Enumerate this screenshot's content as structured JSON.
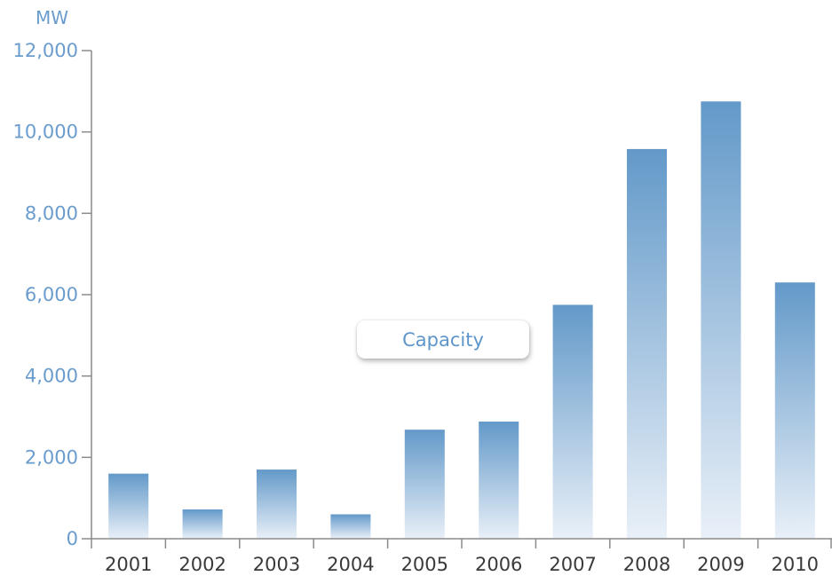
{
  "chart_data": {
    "type": "bar",
    "unit_label": "MW",
    "categories": [
      "2001",
      "2002",
      "2003",
      "2004",
      "2005",
      "2006",
      "2007",
      "2008",
      "2009",
      "2010"
    ],
    "series": [
      {
        "name": "Capacity",
        "values": [
          1600,
          720,
          1700,
          600,
          2680,
          2880,
          5750,
          9580,
          10750,
          6300
        ]
      }
    ],
    "ylim": [
      0,
      12000
    ],
    "yticks": [
      "0",
      "2,000",
      "4,000",
      "6,000",
      "8,000",
      "10,000",
      "12,000"
    ],
    "ytick_values": [
      0,
      2000,
      4000,
      6000,
      8000,
      10000,
      12000
    ],
    "legend_position": "center",
    "grid": false,
    "colors": {
      "bar_top": "#6399c9",
      "bar_bottom": "#e9f0f8",
      "axis": "#8a8a8a",
      "tick_text": "#6a9ccd",
      "category_text": "#3a3a3a"
    }
  }
}
